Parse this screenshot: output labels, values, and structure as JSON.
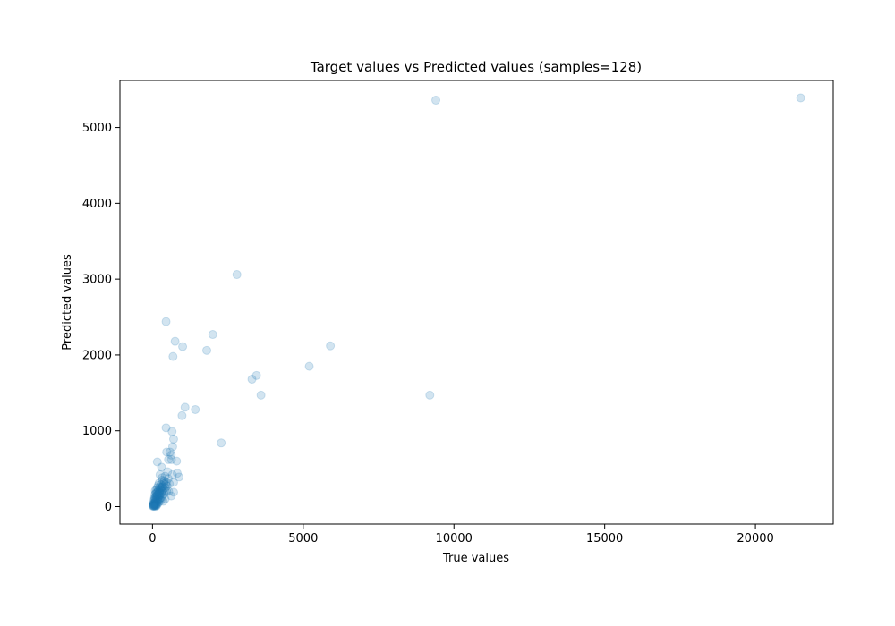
{
  "chart_data": {
    "type": "scatter",
    "title": "Target values vs Predicted values (samples=128)",
    "xlabel": "True values",
    "ylabel": "Predicted values",
    "xlim": [
      -1080,
      22580
    ],
    "ylim": [
      -230,
      5620
    ],
    "xticks": [
      0,
      5000,
      10000,
      15000,
      20000
    ],
    "yticks": [
      0,
      1000,
      2000,
      3000,
      4000,
      5000
    ],
    "grid": false,
    "marker_color": "#1f77b4",
    "marker_alpha": 0.2,
    "points": [
      [
        21500,
        5390
      ],
      [
        9400,
        5360
      ],
      [
        2800,
        3060
      ],
      [
        450,
        2440
      ],
      [
        2000,
        2270
      ],
      [
        750,
        2180
      ],
      [
        1000,
        2110
      ],
      [
        5900,
        2120
      ],
      [
        1800,
        2060
      ],
      [
        680,
        1980
      ],
      [
        5200,
        1850
      ],
      [
        3450,
        1730
      ],
      [
        3300,
        1680
      ],
      [
        3600,
        1470
      ],
      [
        9200,
        1470
      ],
      [
        1080,
        1310
      ],
      [
        1420,
        1280
      ],
      [
        980,
        1200
      ],
      [
        450,
        1040
      ],
      [
        650,
        990
      ],
      [
        700,
        890
      ],
      [
        2280,
        840
      ],
      [
        670,
        790
      ],
      [
        470,
        720
      ],
      [
        580,
        720
      ],
      [
        620,
        680
      ],
      [
        530,
        620
      ],
      [
        630,
        620
      ],
      [
        160,
        590
      ],
      [
        800,
        600
      ],
      [
        300,
        520
      ],
      [
        820,
        440
      ],
      [
        500,
        460
      ],
      [
        250,
        420
      ],
      [
        660,
        420
      ],
      [
        880,
        390
      ],
      [
        420,
        400
      ],
      [
        320,
        380
      ],
      [
        520,
        370
      ],
      [
        400,
        340
      ],
      [
        330,
        350
      ],
      [
        460,
        320
      ],
      [
        700,
        320
      ],
      [
        560,
        300
      ],
      [
        220,
        310
      ],
      [
        380,
        300
      ],
      [
        280,
        290
      ],
      [
        480,
        270
      ],
      [
        190,
        280
      ],
      [
        340,
        270
      ],
      [
        240,
        260
      ],
      [
        430,
        250
      ],
      [
        300,
        250
      ],
      [
        160,
        250
      ],
      [
        260,
        240
      ],
      [
        200,
        230
      ],
      [
        360,
        230
      ],
      [
        130,
        220
      ],
      [
        410,
        210
      ],
      [
        90,
        210
      ],
      [
        470,
        200
      ],
      [
        540,
        200
      ],
      [
        330,
        200
      ],
      [
        240,
        200
      ],
      [
        180,
        200
      ],
      [
        700,
        190
      ],
      [
        150,
        190
      ],
      [
        290,
        180
      ],
      [
        110,
        180
      ],
      [
        210,
        180
      ],
      [
        390,
        170
      ],
      [
        260,
        160
      ],
      [
        170,
        160
      ],
      [
        80,
        160
      ],
      [
        340,
        150
      ],
      [
        620,
        140
      ],
      [
        130,
        140
      ],
      [
        230,
        140
      ],
      [
        200,
        130
      ],
      [
        100,
        130
      ],
      [
        300,
        120
      ],
      [
        160,
        120
      ],
      [
        70,
        120
      ],
      [
        250,
        110
      ],
      [
        120,
        110
      ],
      [
        420,
        100
      ],
      [
        190,
        100
      ],
      [
        60,
        100
      ],
      [
        140,
        90
      ],
      [
        230,
        90
      ],
      [
        100,
        80
      ],
      [
        280,
        80
      ],
      [
        50,
        80
      ],
      [
        170,
        70
      ],
      [
        360,
        70
      ],
      [
        120,
        60
      ],
      [
        80,
        60
      ],
      [
        210,
        60
      ],
      [
        40,
        50
      ],
      [
        150,
        50
      ],
      [
        100,
        45
      ],
      [
        60,
        40
      ],
      [
        180,
        40
      ],
      [
        30,
        35
      ],
      [
        130,
        30
      ],
      [
        90,
        30
      ],
      [
        50,
        25
      ],
      [
        20,
        20
      ],
      [
        110,
        20
      ],
      [
        70,
        20
      ],
      [
        40,
        15
      ],
      [
        140,
        15
      ],
      [
        25,
        10
      ],
      [
        60,
        10
      ],
      [
        90,
        10
      ],
      [
        15,
        5
      ],
      [
        45,
        5
      ],
      [
        110,
        5
      ],
      [
        30,
        30
      ],
      [
        200,
        160
      ],
      [
        260,
        220
      ],
      [
        320,
        260
      ],
      [
        380,
        330
      ],
      [
        440,
        290
      ],
      [
        150,
        150
      ],
      [
        230,
        180
      ],
      [
        90,
        90
      ],
      [
        120,
        170
      ]
    ]
  }
}
